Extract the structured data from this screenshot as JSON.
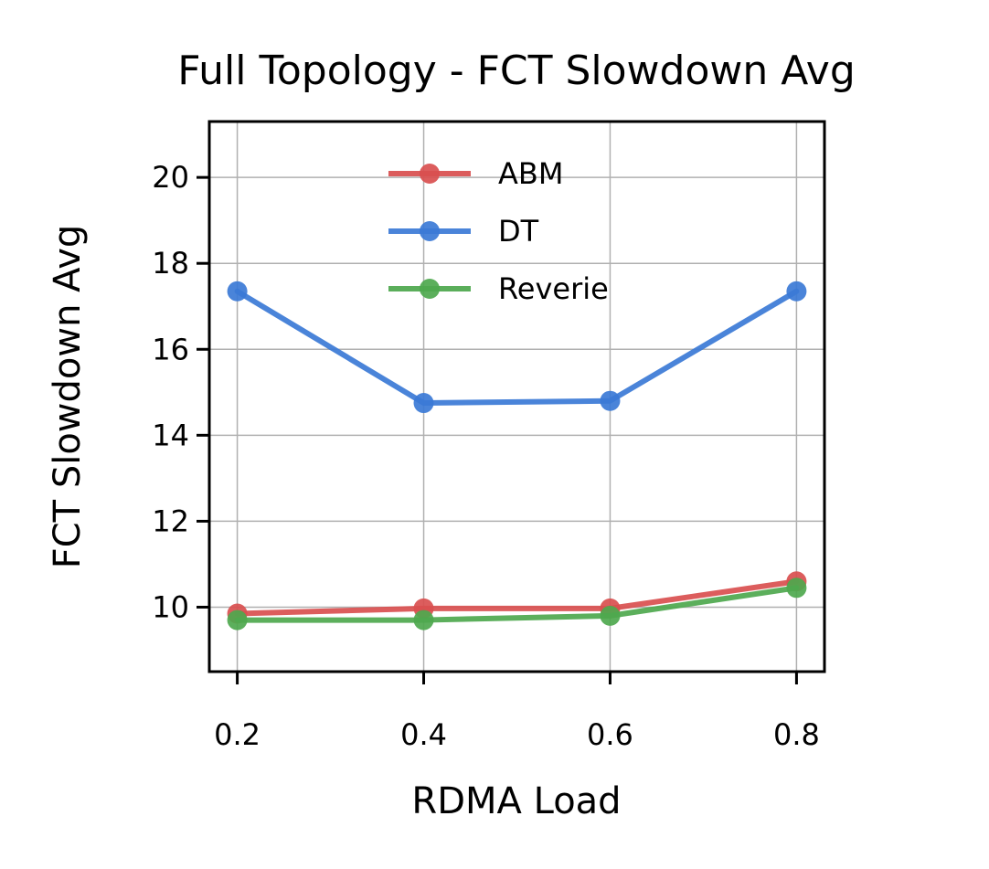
{
  "chart_data": {
    "type": "line",
    "title": "Full Topology - FCT Slowdown Avg",
    "xlabel": "RDMA Load",
    "ylabel": "FCT Slowdown Avg",
    "x": [
      0.2,
      0.4,
      0.6,
      0.8
    ],
    "x_tick_labels": [
      "0.2",
      "0.4",
      "0.6",
      "0.8"
    ],
    "y_ticks": [
      10,
      12,
      14,
      16,
      18,
      20
    ],
    "y_tick_labels": [
      "10",
      "12",
      "14",
      "16",
      "18",
      "20"
    ],
    "xlim": [
      0.17,
      0.83
    ],
    "ylim": [
      8.5,
      21.3
    ],
    "grid": true,
    "legend_position": "upper center",
    "series": [
      {
        "name": "ABM",
        "color": "#d94f4f",
        "values": [
          9.85,
          9.97,
          9.97,
          10.6
        ]
      },
      {
        "name": "DT",
        "color": "#3b7ad6",
        "values": [
          17.35,
          14.75,
          14.8,
          17.35
        ]
      },
      {
        "name": "Reverie",
        "color": "#4ea84e",
        "values": [
          9.7,
          9.7,
          9.8,
          10.45
        ]
      }
    ]
  }
}
